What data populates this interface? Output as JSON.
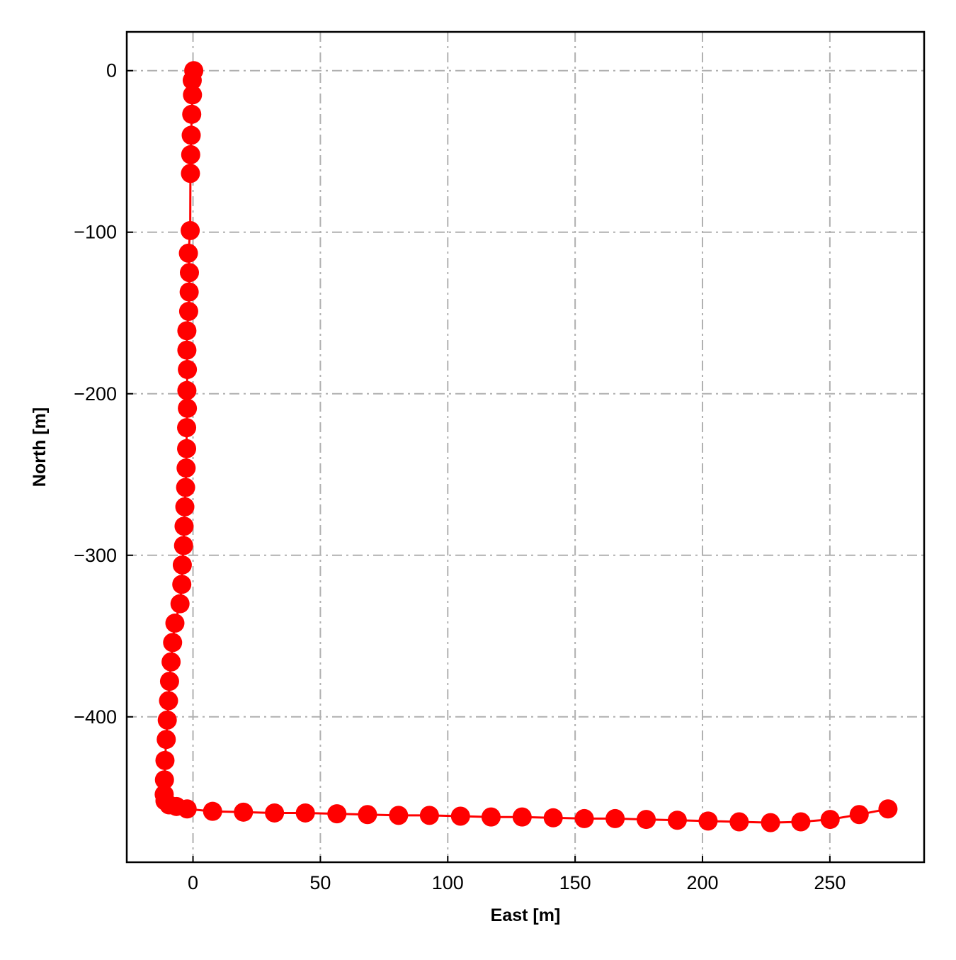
{
  "chart_data": {
    "type": "line",
    "xlabel": "East [m]",
    "ylabel": "North [m]",
    "xlim": [
      -26,
      287
    ],
    "ylim": [
      -490,
      24
    ],
    "xticks": [
      0,
      50,
      100,
      150,
      200,
      250
    ],
    "yticks": [
      0,
      -100,
      -200,
      -300,
      -400
    ],
    "xtick_labels": [
      "0",
      "50",
      "100",
      "150",
      "200",
      "250"
    ],
    "ytick_labels": [
      "0",
      "−100",
      "−200",
      "−300",
      "−400"
    ],
    "grid": true,
    "grid_style": "dash-dot",
    "series": [
      {
        "color": "#ff0000",
        "marker": "circle",
        "x": [
          0.3,
          -0.3,
          -0.2,
          -0.5,
          -0.7,
          -0.9,
          -1,
          -1.1,
          -1.8,
          -1.4,
          -1.5,
          -1.7,
          -2.4,
          -2.4,
          -2.2,
          -2.4,
          -2.2,
          -2.5,
          -2.5,
          -2.7,
          -2.9,
          -3.2,
          -3.5,
          -3.7,
          -4.2,
          -4.4,
          -5.1,
          -7.1,
          -8,
          -8.6,
          -9.2,
          -9.6,
          -10.1,
          -10.5,
          -11,
          -11.2,
          -11.3,
          -11,
          -9.4,
          -6.5,
          -2.3,
          7.7,
          19.8,
          32,
          44.1,
          56.5,
          68.5,
          80.7,
          92.8,
          105,
          117,
          129.2,
          141.4,
          153.6,
          165.7,
          177.9,
          190.1,
          202.2,
          214.4,
          226.7,
          238.6,
          250.1,
          261.5,
          272.8
        ],
        "y": [
          0,
          -6,
          -15,
          -27,
          -40,
          -52,
          -63.6,
          -99,
          -113,
          -125,
          -137,
          -149,
          -161,
          -173,
          -185,
          -198,
          -209,
          -221,
          -234,
          -246,
          -258,
          -270,
          -282,
          -294,
          -306,
          -318,
          -330,
          -342,
          -354,
          -366,
          -378,
          -390,
          -402,
          -414,
          -427,
          -439,
          -448,
          -452,
          -454.5,
          -455.5,
          -457,
          -458.5,
          -459,
          -459.5,
          -459.5,
          -460,
          -460.5,
          -461,
          -461,
          -461.5,
          -462,
          -462,
          -462.5,
          -463,
          -463,
          -463.5,
          -464,
          -464.5,
          -465,
          -465.5,
          -465,
          -463.5,
          -460.5,
          -457
        ]
      }
    ]
  }
}
